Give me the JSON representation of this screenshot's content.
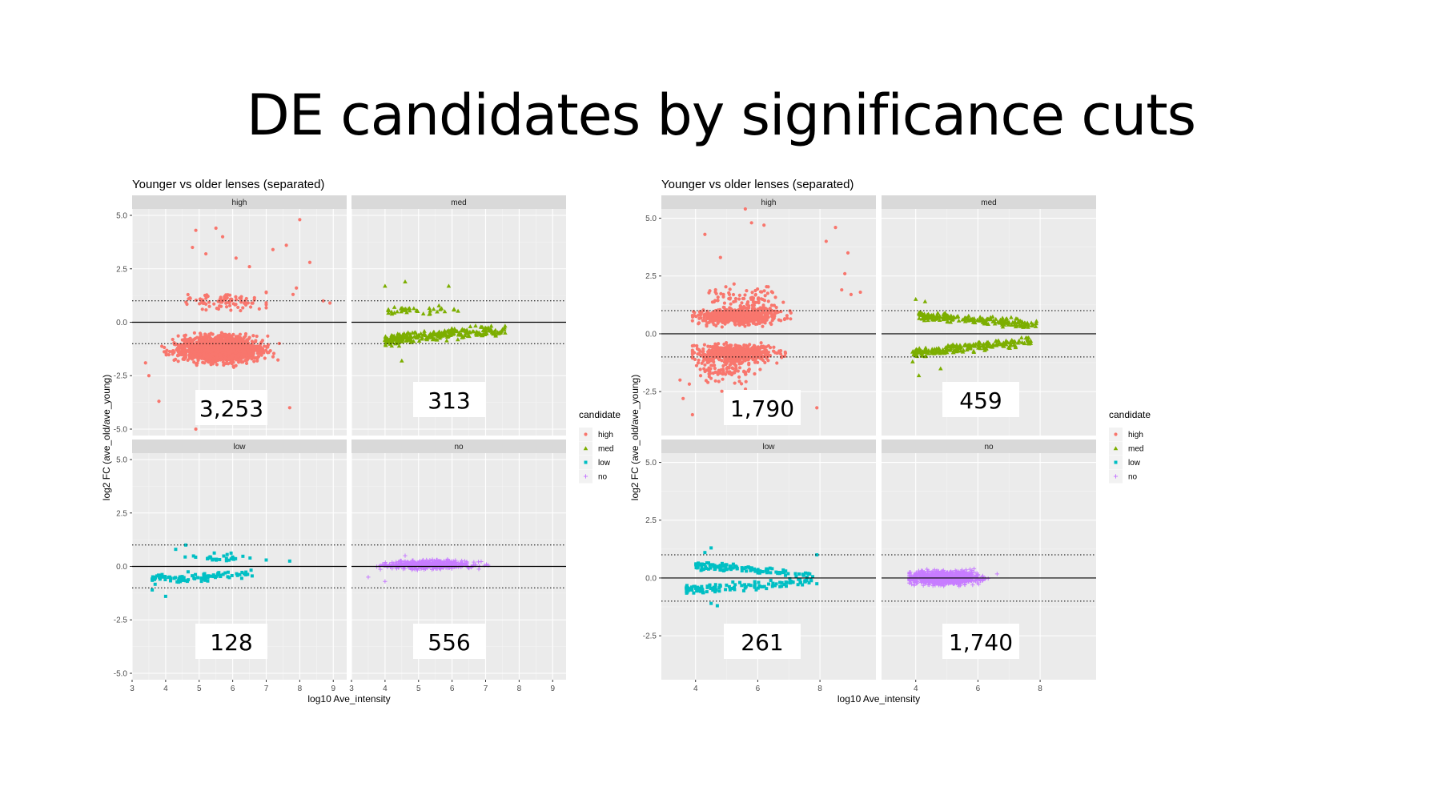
{
  "slide": {
    "title": "DE candidates by significance cuts"
  },
  "colors": {
    "high": "#F8766D",
    "med": "#7CAE00",
    "low": "#00BFC4",
    "no": "#C77CFF",
    "panel_bg": "#EBEBEB",
    "strip_bg": "#D9D9D9"
  },
  "chart_data": [
    {
      "type": "scatter",
      "title": "Younger vs older lenses (separated)",
      "xlabel": "log10 Ave_intensity",
      "ylabel": "log2 FC (ave_old/ave_young)",
      "xlim": [
        3,
        9.4
      ],
      "ylim": [
        -5.3,
        5.3
      ],
      "xticks": [
        3,
        4,
        5,
        6,
        7,
        8,
        9
      ],
      "yticks": [
        5.0,
        2.5,
        0.0,
        -2.5,
        -5.0
      ],
      "reference_lines": {
        "solid": [
          0
        ],
        "dotted": [
          1,
          -1
        ]
      },
      "facets": [
        {
          "name": "high",
          "count_label": "3,253"
        },
        {
          "name": "med",
          "count_label": "313"
        },
        {
          "name": "low",
          "count_label": "128"
        },
        {
          "name": "no",
          "count_label": "556"
        }
      ],
      "legend": {
        "title": "candidate",
        "position": "right",
        "entries": [
          "high",
          "med",
          "low",
          "no"
        ]
      }
    },
    {
      "type": "scatter",
      "title": "Younger vs older lenses (separated)",
      "xlabel": "log10 Ave_intensity",
      "ylabel": "log2 FC (ave_old/ave_young)",
      "xlim": [
        2.9,
        9.8
      ],
      "ylim": [
        -4.4,
        5.4
      ],
      "xticks": [
        4,
        6,
        8
      ],
      "yticks": [
        5.0,
        2.5,
        0.0,
        -2.5
      ],
      "reference_lines": {
        "solid": [
          0
        ],
        "dotted": [
          1,
          -1
        ]
      },
      "facets": [
        {
          "name": "high",
          "count_label": "1,790"
        },
        {
          "name": "med",
          "count_label": "459"
        },
        {
          "name": "low",
          "count_label": "261"
        },
        {
          "name": "no",
          "count_label": "1,740"
        }
      ],
      "legend": {
        "title": "candidate",
        "position": "right",
        "entries": [
          "high",
          "med",
          "low",
          "no"
        ]
      }
    }
  ]
}
